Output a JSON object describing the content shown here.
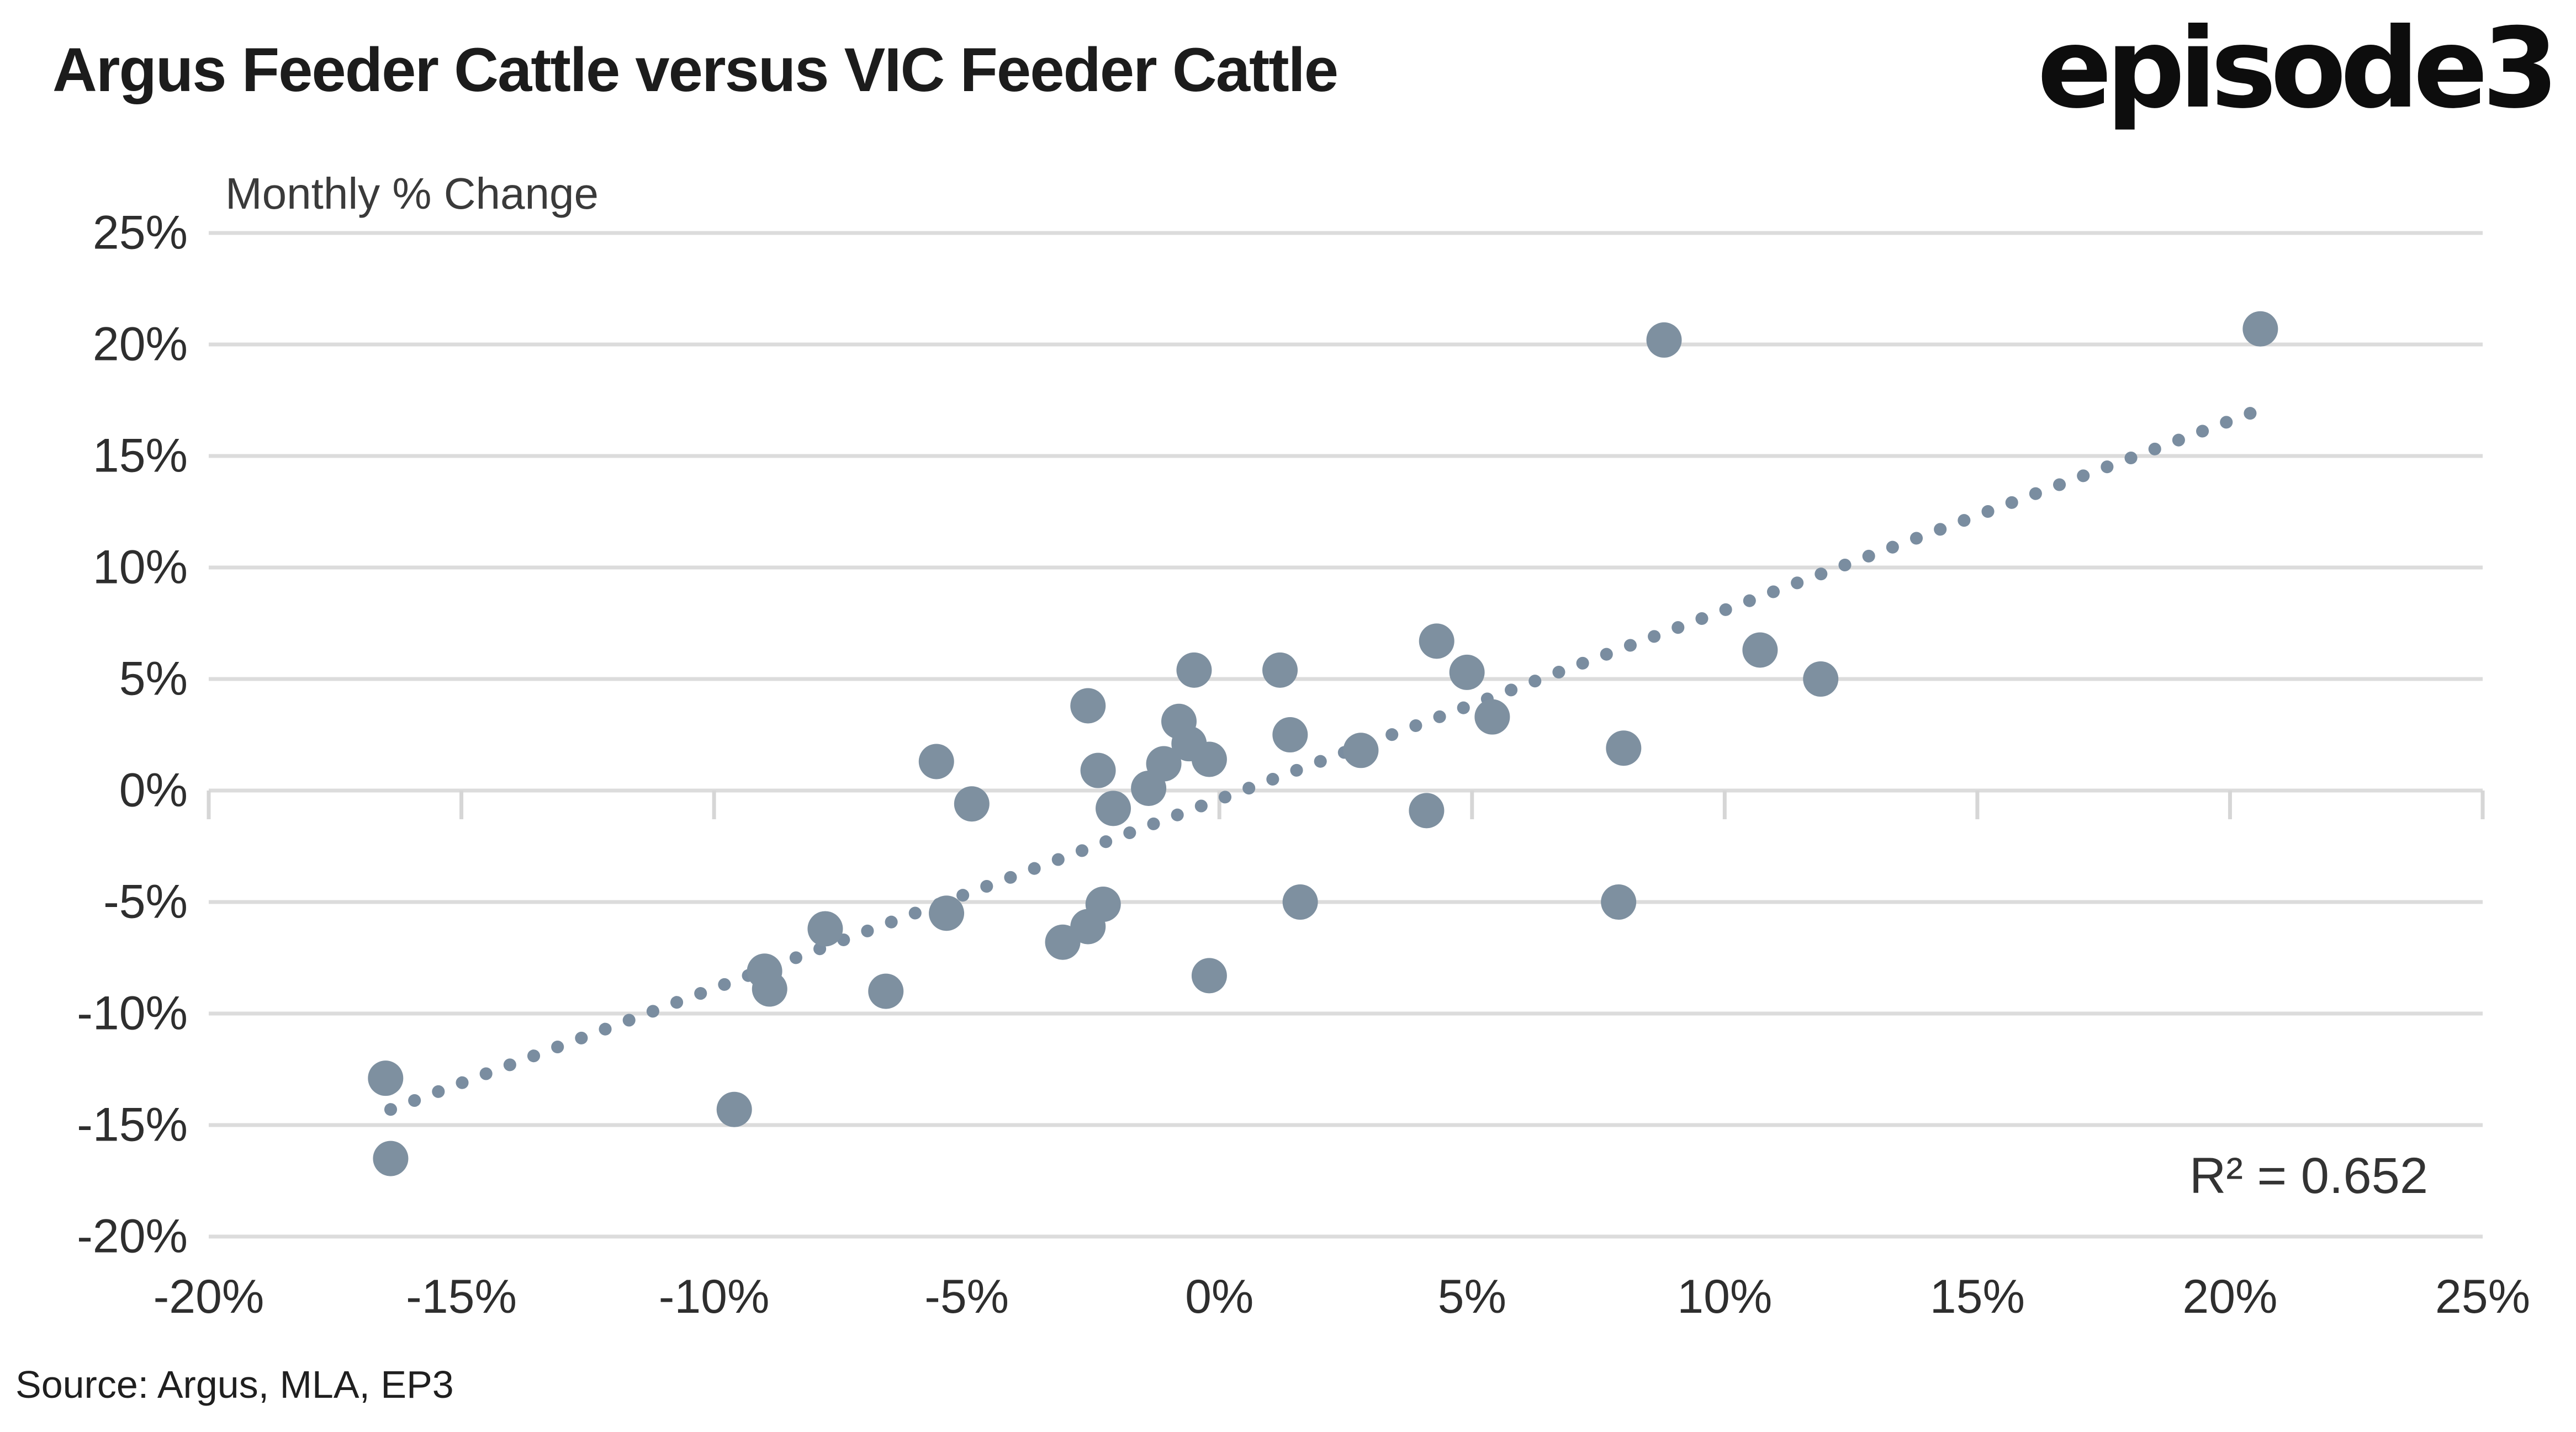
{
  "header": {
    "title": "Argus Feeder Cattle versus VIC Feeder Cattle",
    "logo_text": "episode3"
  },
  "chart": {
    "axis_title": "Monthly % Change",
    "r_squared_label": "R² = 0.652"
  },
  "footer": {
    "source": "Source: Argus, MLA, EP3"
  },
  "colors": {
    "point": "#7E90A0",
    "trendline": "#7A8DA0",
    "gridline": "#DCDCDC",
    "tick": "#D6D6D6",
    "title": "#1C1C1C",
    "text": "#2E2E2E"
  },
  "chart_data": {
    "type": "scatter",
    "title": "Argus Feeder Cattle versus VIC Feeder Cattle",
    "subtitle": "Monthly % Change",
    "xlabel": "",
    "ylabel": "",
    "xlim": [
      -20,
      25
    ],
    "ylim": [
      -20,
      25
    ],
    "grid": "horizontal-only",
    "x_ticks": [
      {
        "value": -20,
        "label": "-20%"
      },
      {
        "value": -15,
        "label": "-15%"
      },
      {
        "value": -10,
        "label": "-10%"
      },
      {
        "value": -5,
        "label": "-5%"
      },
      {
        "value": 0,
        "label": "0%"
      },
      {
        "value": 5,
        "label": "5%"
      },
      {
        "value": 10,
        "label": "10%"
      },
      {
        "value": 15,
        "label": "15%"
      },
      {
        "value": 20,
        "label": "20%"
      },
      {
        "value": 25,
        "label": "25%"
      }
    ],
    "y_ticks": [
      {
        "value": 25,
        "label": "25%"
      },
      {
        "value": 20,
        "label": "20%"
      },
      {
        "value": 15,
        "label": "15%"
      },
      {
        "value": 10,
        "label": "10%"
      },
      {
        "value": 5,
        "label": "5%"
      },
      {
        "value": 0,
        "label": "0%"
      },
      {
        "value": -5,
        "label": "-5%"
      },
      {
        "value": -10,
        "label": "-10%"
      },
      {
        "value": -15,
        "label": "-15%"
      },
      {
        "value": -20,
        "label": "-20%"
      }
    ],
    "points": [
      [
        -16.5,
        -12.9
      ],
      [
        -16.4,
        -16.5
      ],
      [
        -9.6,
        -14.3
      ],
      [
        -9.0,
        -8.1
      ],
      [
        -8.9,
        -8.9
      ],
      [
        -7.8,
        -6.2
      ],
      [
        -6.6,
        -9.0
      ],
      [
        -5.6,
        1.3
      ],
      [
        -5.4,
        -5.5
      ],
      [
        -4.9,
        -0.6
      ],
      [
        -3.1,
        -6.8
      ],
      [
        -2.6,
        -6.1
      ],
      [
        -2.3,
        -5.1
      ],
      [
        -2.6,
        3.8
      ],
      [
        -2.4,
        0.9
      ],
      [
        -2.1,
        -0.8
      ],
      [
        -1.4,
        0.1
      ],
      [
        -1.1,
        1.2
      ],
      [
        -0.8,
        3.1
      ],
      [
        -0.6,
        2.1
      ],
      [
        -0.5,
        5.4
      ],
      [
        -0.2,
        1.4
      ],
      [
        -0.2,
        -8.3
      ],
      [
        1.2,
        5.4
      ],
      [
        1.4,
        2.5
      ],
      [
        1.6,
        -5.0
      ],
      [
        2.8,
        1.8
      ],
      [
        4.3,
        6.7
      ],
      [
        4.1,
        -0.9
      ],
      [
        4.9,
        5.3
      ],
      [
        5.4,
        3.3
      ],
      [
        8.0,
        1.9
      ],
      [
        7.9,
        -5.0
      ],
      [
        8.8,
        20.2
      ],
      [
        10.7,
        6.3
      ],
      [
        11.9,
        5.0
      ],
      [
        20.6,
        20.7
      ]
    ],
    "trendline": {
      "style": "dotted",
      "x1": -16.4,
      "y1": -14.3,
      "x2": 20.5,
      "y2": 17.0,
      "r_squared": 0.652
    },
    "annotations": [
      {
        "text": "R² = 0.652",
        "position": "bottom-right"
      }
    ],
    "legend": "none"
  }
}
